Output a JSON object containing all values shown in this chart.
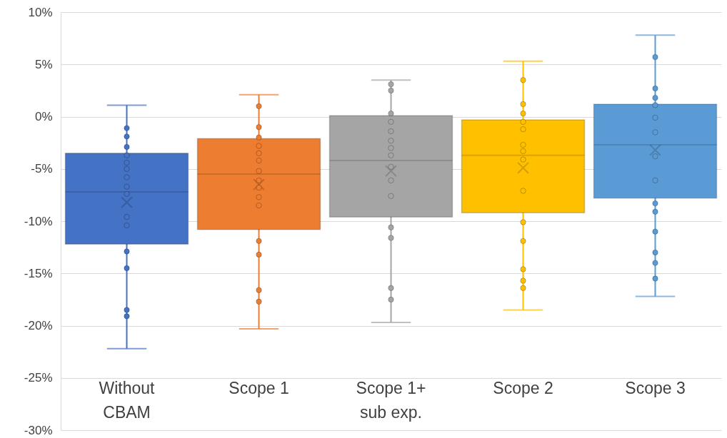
{
  "chart_data": {
    "type": "box",
    "categories": [
      "Without\nCBAM",
      "Scope 1",
      "Scope 1+\nsub exp.",
      "Scope 2",
      "Scope 3"
    ],
    "colors": [
      "#4472c4",
      "#ed7d31",
      "#a5a5a5",
      "#ffc000",
      "#5b9bd5"
    ],
    "boxes": [
      {
        "low": -22.2,
        "q1": -12.2,
        "median": -7.2,
        "q3": -3.5,
        "high": 1.1,
        "mean": -8.2
      },
      {
        "low": -20.3,
        "q1": -10.8,
        "median": -5.5,
        "q3": -2.1,
        "high": 2.1,
        "mean": -6.5
      },
      {
        "low": -19.7,
        "q1": -9.6,
        "median": -4.2,
        "q3": 0.1,
        "high": 3.5,
        "mean": -5.2
      },
      {
        "low": -18.5,
        "q1": -9.2,
        "median": -3.7,
        "q3": -0.3,
        "high": 5.3,
        "mean": -4.9
      },
      {
        "low": -17.2,
        "q1": -7.8,
        "median": -2.7,
        "q3": 1.2,
        "high": 7.8,
        "mean": -3.2
      }
    ],
    "series": [
      {
        "type": "scatter",
        "color": "#4472c4",
        "marker": "circle",
        "x": [
          "Without\nCBAM",
          "Without\nCBAM",
          "Without\nCBAM",
          "Without\nCBAM",
          "Without\nCBAM",
          "Without\nCBAM",
          "Without\nCBAM",
          "Without\nCBAM",
          "Without\nCBAM",
          "Without\nCBAM",
          "Without\nCBAM",
          "Without\nCBAM",
          "Without\nCBAM",
          "Without\nCBAM",
          "Without\nCBAM"
        ],
        "values": [
          -1.1,
          -1.9,
          -2.9,
          -3.7,
          -4.4,
          -5.0,
          -5.8,
          -6.7,
          -7.4,
          -9.6,
          -10.4,
          -12.9,
          -14.5,
          -18.5,
          -19.1
        ]
      },
      {
        "type": "scatter",
        "color": "#ed7d31",
        "marker": "circle",
        "x": [
          "Scope 1",
          "Scope 1",
          "Scope 1",
          "Scope 1",
          "Scope 1",
          "Scope 1",
          "Scope 1",
          "Scope 1",
          "Scope 1",
          "Scope 1",
          "Scope 1",
          "Scope 1",
          "Scope 1",
          "Scope 1",
          "Scope 1"
        ],
        "values": [
          1.0,
          -1.0,
          -2.0,
          -2.8,
          -3.5,
          -4.2,
          -5.2,
          -6.1,
          -6.8,
          -7.7,
          -8.5,
          -11.9,
          -13.2,
          -16.6,
          -17.7
        ]
      },
      {
        "type": "scatter",
        "color": "#a5a5a5",
        "marker": "circle",
        "x": [
          "Scope 1+\nsub exp.",
          "Scope 1+\nsub exp.",
          "Scope 1+\nsub exp.",
          "Scope 1+\nsub exp.",
          "Scope 1+\nsub exp.",
          "Scope 1+\nsub exp.",
          "Scope 1+\nsub exp.",
          "Scope 1+\nsub exp.",
          "Scope 1+\nsub exp.",
          "Scope 1+\nsub exp.",
          "Scope 1+\nsub exp.",
          "Scope 1+\nsub exp.",
          "Scope 1+\nsub exp.",
          "Scope 1+\nsub exp.",
          "Scope 1+\nsub exp."
        ],
        "values": [
          3.1,
          2.5,
          0.3,
          -0.5,
          -1.4,
          -2.3,
          -3.0,
          -3.7,
          -4.8,
          -6.1,
          -7.6,
          -10.6,
          -11.6,
          -16.4,
          -17.5
        ]
      },
      {
        "type": "scatter",
        "color": "#ffc000",
        "marker": "circle",
        "x": [
          "Scope 2",
          "Scope 2",
          "Scope 2",
          "Scope 2",
          "Scope 2",
          "Scope 2",
          "Scope 2",
          "Scope 2",
          "Scope 2",
          "Scope 2",
          "Scope 2",
          "Scope 2",
          "Scope 2",
          "Scope 2"
        ],
        "values": [
          3.5,
          1.2,
          0.3,
          -0.5,
          -1.2,
          -2.7,
          -3.3,
          -4.1,
          -7.1,
          -10.1,
          -11.9,
          -14.6,
          -15.7,
          -16.4
        ]
      },
      {
        "type": "scatter",
        "color": "#5b9bd5",
        "marker": "circle",
        "x": [
          "Scope 3",
          "Scope 3",
          "Scope 3",
          "Scope 3",
          "Scope 3",
          "Scope 3",
          "Scope 3",
          "Scope 3",
          "Scope 3",
          "Scope 3",
          "Scope 3",
          "Scope 3",
          "Scope 3",
          "Scope 3"
        ],
        "values": [
          5.7,
          2.7,
          1.8,
          1.1,
          -0.1,
          -1.5,
          -3.8,
          -6.1,
          -8.3,
          -9.1,
          -11.0,
          -13.0,
          -14.0,
          -15.5
        ]
      }
    ],
    "ylim": [
      -30,
      10
    ],
    "yticks": [
      {
        "value": -30,
        "label": "-30%"
      },
      {
        "value": -25,
        "label": "-25%"
      },
      {
        "value": -20,
        "label": "-20%"
      },
      {
        "value": -15,
        "label": "-15%"
      },
      {
        "value": -10,
        "label": "-10%"
      },
      {
        "value": -5,
        "label": "-5%"
      },
      {
        "value": 0,
        "label": "0%"
      },
      {
        "value": 5,
        "label": "5%"
      },
      {
        "value": 10,
        "label": "10%"
      }
    ],
    "grid": "y"
  }
}
